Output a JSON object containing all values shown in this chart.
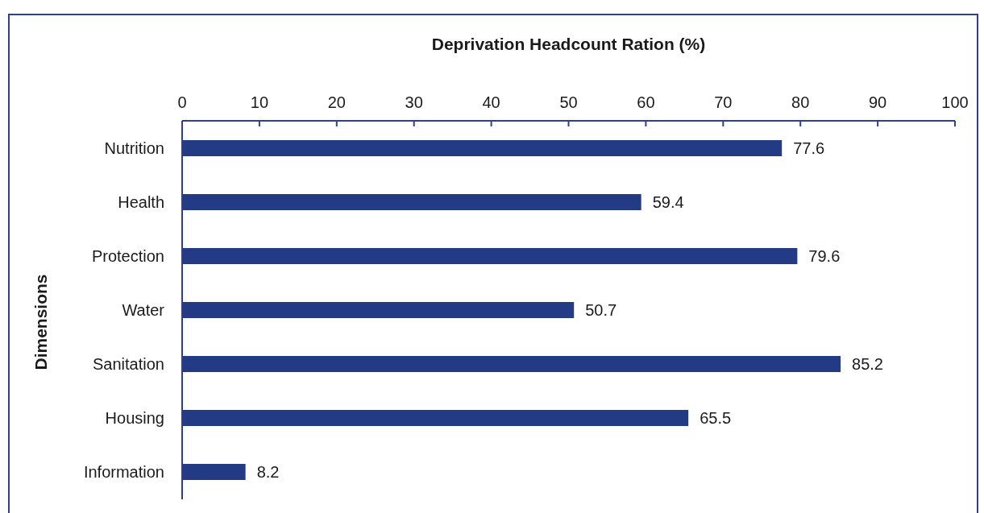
{
  "chart_data": {
    "type": "bar",
    "orientation": "horizontal",
    "title": "Deprivation Headcount Ration (%)",
    "ylabel": "Dimensions",
    "categories": [
      "Nutrition",
      "Health",
      "Protection",
      "Water",
      "Sanitation",
      "Housing",
      "Information"
    ],
    "values": [
      77.6,
      59.4,
      79.6,
      50.7,
      85.2,
      65.5,
      8.2
    ],
    "color": "#233a84",
    "xlim": [
      0,
      100
    ],
    "xticks": [
      0,
      10,
      20,
      30,
      40,
      50,
      60,
      70,
      80,
      90,
      100
    ],
    "data_labels": true,
    "grid": false
  }
}
